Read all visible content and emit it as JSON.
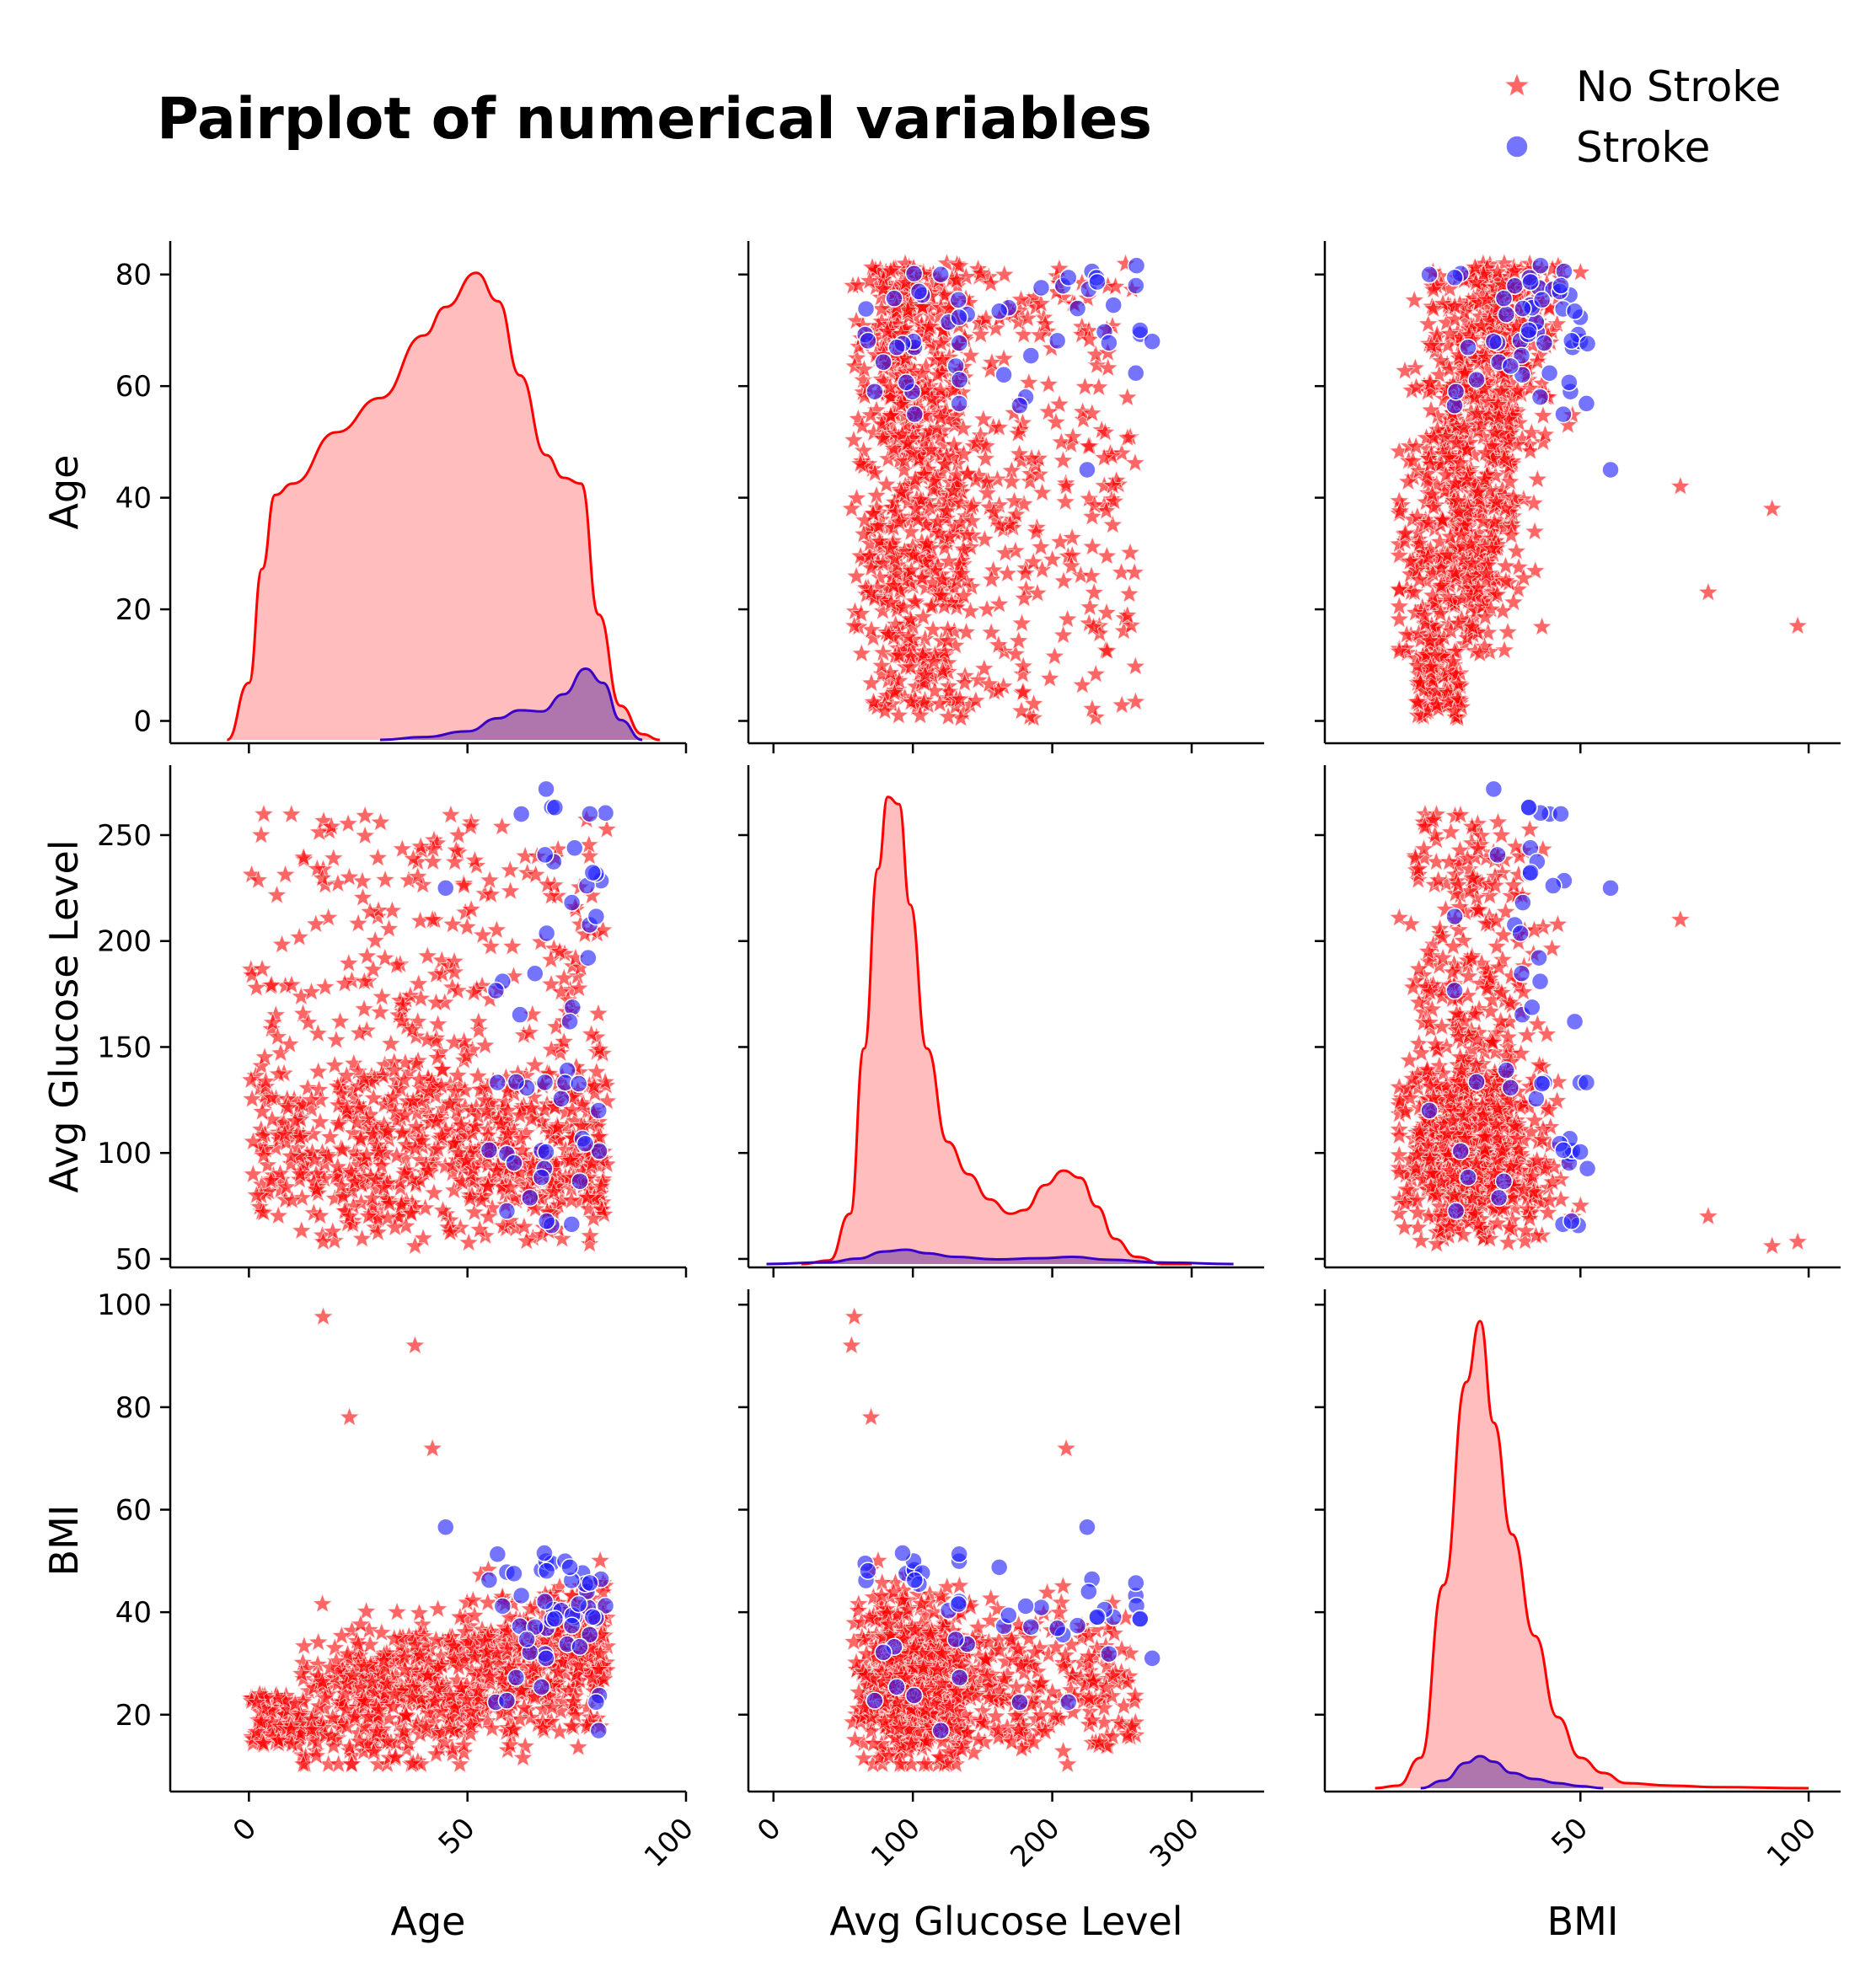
{
  "title": "Pairplot of numerical variables",
  "chart_data": {
    "type": "scatter",
    "variables": [
      "Age",
      "Avg Glucose Level",
      "BMI"
    ],
    "axis_labels": {
      "Age": "Age",
      "Avg Glucose Level": "Avg Glucose Level",
      "BMI": "BMI"
    },
    "axis_ranges": {
      "Age": [
        -18,
        100
      ],
      "Avg Glucose Level": [
        -18,
        352
      ],
      "BMI": [
        -6,
        107
      ]
    },
    "y_axis_ranges": {
      "Age": [
        -4,
        86
      ],
      "Avg Glucose Level": [
        46,
        283
      ],
      "BMI": [
        5,
        103
      ]
    },
    "x_ticks": {
      "Age": [
        0,
        50,
        100
      ],
      "Avg Glucose Level": [
        0,
        100,
        200,
        300
      ],
      "BMI": [
        50,
        100
      ]
    },
    "y_ticks": {
      "Age": [
        0,
        20,
        40,
        60,
        80
      ],
      "Avg Glucose Level": [
        50,
        100,
        150,
        200,
        250
      ],
      "BMI": [
        20,
        40,
        60,
        80,
        100
      ]
    },
    "x_tick_rotation": 45,
    "legend": {
      "position": "top-right",
      "entries": [
        {
          "label": "No Stroke",
          "color": "#ff0000",
          "marker": "star"
        },
        {
          "label": "Stroke",
          "color": "#0000ff",
          "marker": "circle"
        }
      ]
    },
    "hue": [
      "No Stroke",
      "Stroke"
    ],
    "grid": false,
    "diagonal": "kde",
    "kde": {
      "Age": {
        "No Stroke": [
          [
            -5,
            0
          ],
          [
            0,
            10
          ],
          [
            3,
            30
          ],
          [
            6,
            43
          ],
          [
            10,
            45
          ],
          [
            20,
            54
          ],
          [
            30,
            60
          ],
          [
            40,
            71
          ],
          [
            45,
            76
          ],
          [
            52,
            82
          ],
          [
            57,
            77
          ],
          [
            62,
            64
          ],
          [
            68,
            50
          ],
          [
            72,
            46
          ],
          [
            76,
            45
          ],
          [
            80,
            22
          ],
          [
            85,
            6
          ],
          [
            90,
            1
          ],
          [
            94,
            0
          ]
        ],
        "Stroke": [
          [
            30,
            0
          ],
          [
            40,
            0.5
          ],
          [
            50,
            1.5
          ],
          [
            57,
            3.8
          ],
          [
            62,
            5.2
          ],
          [
            67,
            5.0
          ],
          [
            72,
            8.0
          ],
          [
            77,
            12.5
          ],
          [
            81,
            10.0
          ],
          [
            85,
            3.5
          ],
          [
            90,
            0
          ]
        ]
      },
      "Avg Glucose Level": {
        "No Stroke": [
          [
            20,
            0
          ],
          [
            40,
            1
          ],
          [
            55,
            14
          ],
          [
            65,
            60
          ],
          [
            75,
            110
          ],
          [
            82,
            130
          ],
          [
            90,
            128
          ],
          [
            98,
            100
          ],
          [
            110,
            60
          ],
          [
            125,
            34
          ],
          [
            140,
            25
          ],
          [
            155,
            18
          ],
          [
            170,
            14
          ],
          [
            180,
            15
          ],
          [
            195,
            22
          ],
          [
            208,
            26
          ],
          [
            220,
            24
          ],
          [
            232,
            16
          ],
          [
            245,
            7
          ],
          [
            260,
            2
          ],
          [
            280,
            0
          ],
          [
            300,
            0
          ]
        ],
        "Stroke": [
          [
            -5,
            0
          ],
          [
            40,
            0.5
          ],
          [
            60,
            1.5
          ],
          [
            80,
            3.5
          ],
          [
            95,
            4.0
          ],
          [
            110,
            3.0
          ],
          [
            130,
            2.0
          ],
          [
            160,
            1.3
          ],
          [
            190,
            1.6
          ],
          [
            215,
            2.0
          ],
          [
            240,
            1.2
          ],
          [
            280,
            0.4
          ],
          [
            330,
            0
          ]
        ]
      },
      "BMI": {
        "No Stroke": [
          [
            5,
            0
          ],
          [
            10,
            0.5
          ],
          [
            15,
            6
          ],
          [
            20,
            40
          ],
          [
            25,
            80
          ],
          [
            28,
            92
          ],
          [
            31,
            72
          ],
          [
            35,
            50
          ],
          [
            40,
            30
          ],
          [
            45,
            14
          ],
          [
            50,
            6
          ],
          [
            55,
            3
          ],
          [
            60,
            1
          ],
          [
            70,
            0.5
          ],
          [
            80,
            0.2
          ],
          [
            100,
            0
          ]
        ],
        "Stroke": [
          [
            15,
            0
          ],
          [
            20,
            1.5
          ],
          [
            25,
            5.0
          ],
          [
            28,
            6.3
          ],
          [
            31,
            5.2
          ],
          [
            35,
            3.0
          ],
          [
            40,
            1.8
          ],
          [
            45,
            1.0
          ],
          [
            50,
            0.4
          ],
          [
            55,
            0
          ]
        ]
      }
    },
    "scatter_distribution": {
      "No Stroke": {
        "Age": {
          "min": 0.1,
          "max": 82
        },
        "Avg Glucose Level": {
          "min": 55,
          "max": 272
        },
        "BMI": {
          "min": 10,
          "max": 98
        }
      },
      "Stroke": {
        "Age": {
          "min": 40,
          "max": 82
        },
        "Avg Glucose Level": {
          "min": 56,
          "max": 272
        },
        "BMI": {
          "min": 16,
          "max": 57
        }
      }
    },
    "notable_points": [
      {
        "group": "No Stroke",
        "Age": 17,
        "Avg Glucose Level": 58,
        "BMI": 97.6
      },
      {
        "group": "No Stroke",
        "Age": 38,
        "Avg Glucose Level": 56,
        "BMI": 92
      },
      {
        "group": "No Stroke",
        "Age": 23,
        "Avg Glucose Level": 70,
        "BMI": 78
      },
      {
        "group": "No Stroke",
        "Age": 42,
        "Avg Glucose Level": 210,
        "BMI": 71.9
      },
      {
        "group": "Stroke",
        "Age": 68,
        "Avg Glucose Level": 271.7,
        "BMI": 31
      },
      {
        "group": "Stroke",
        "Age": 70,
        "Avg Glucose Level": 263,
        "BMI": 38.7
      },
      {
        "group": "Stroke",
        "Age": 78,
        "Avg Glucose Level": 260,
        "BMI": 45.7
      },
      {
        "group": "Stroke",
        "Age": 45,
        "Avg Glucose Level": 225,
        "BMI": 56.6
      },
      {
        "group": "Stroke",
        "Age": 80,
        "Avg Glucose Level": 120,
        "BMI": 16.9
      }
    ]
  }
}
